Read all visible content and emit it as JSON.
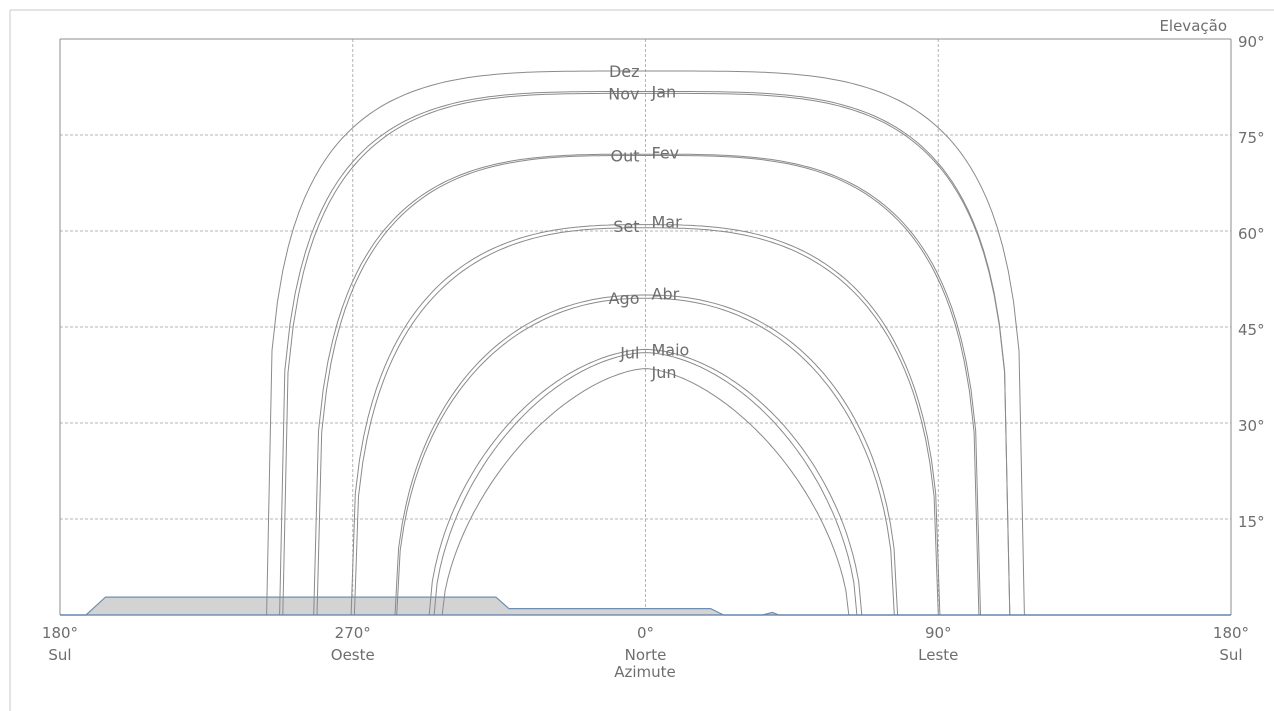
{
  "chart_data": {
    "type": "line",
    "x_axis": {
      "title": "Azimute",
      "range": [
        -180,
        180
      ],
      "ticks": [
        {
          "value": -180,
          "label": "180°",
          "sub": "Sul"
        },
        {
          "value": -90,
          "label": "270°",
          "sub": "Oeste"
        },
        {
          "value": 0,
          "label": "0°",
          "sub": "Norte"
        },
        {
          "value": 90,
          "label": "90°",
          "sub": "Leste"
        },
        {
          "value": 180,
          "label": "180°",
          "sub": "Sul"
        }
      ]
    },
    "y_axis": {
      "title": "Elevação",
      "range": [
        0,
        90
      ],
      "ticks": [
        {
          "value": 15,
          "label": "15°"
        },
        {
          "value": 30,
          "label": "30°"
        },
        {
          "value": 45,
          "label": "45°"
        },
        {
          "value": 60,
          "label": "60°"
        },
        {
          "value": 75,
          "label": "75°"
        },
        {
          "value": 90,
          "label": "90°"
        }
      ]
    },
    "grid": true,
    "series": [
      {
        "name": "Dez",
        "peak": 85.0,
        "left_base": -116.5,
        "right_base": 116.5
      },
      {
        "name": "Nov",
        "peak": 81.8,
        "left_base": -112.5,
        "right_base": 112.0
      },
      {
        "name": "Jan",
        "peak": 81.5,
        "left_base": -111.5,
        "right_base": 112.0
      },
      {
        "name": "Out",
        "peak": 72.0,
        "left_base": -102.0,
        "right_base": 103.0
      },
      {
        "name": "Fev",
        "peak": 71.8,
        "left_base": -101.0,
        "right_base": 102.5
      },
      {
        "name": "Set",
        "peak": 61.0,
        "left_base": -90.5,
        "right_base": 90.5
      },
      {
        "name": "Mar",
        "peak": 60.5,
        "left_base": -89.5,
        "right_base": 90.0
      },
      {
        "name": "Ago",
        "peak": 50.0,
        "left_base": -77.0,
        "right_base": 77.5
      },
      {
        "name": "Abr",
        "peak": 49.5,
        "left_base": -76.5,
        "right_base": 76.5
      },
      {
        "name": "Jul",
        "peak": 41.5,
        "left_base": -66.5,
        "right_base": 66.5
      },
      {
        "name": "Maio",
        "peak": 41.0,
        "left_base": -65.0,
        "right_base": 65.0
      },
      {
        "name": "Jun",
        "peak": 38.5,
        "left_base": -62.5,
        "right_base": 62.5
      }
    ],
    "month_labels": [
      {
        "text": "Dez",
        "side": "left",
        "elev": 85.0
      },
      {
        "text": "Nov",
        "side": "left",
        "elev": 81.5
      },
      {
        "text": "Jan",
        "side": "right",
        "elev": 81.8
      },
      {
        "text": "Out",
        "side": "left",
        "elev": 71.8
      },
      {
        "text": "Fev",
        "side": "right",
        "elev": 72.3
      },
      {
        "text": "Set",
        "side": "left",
        "elev": 60.8
      },
      {
        "text": "Mar",
        "side": "right",
        "elev": 61.5
      },
      {
        "text": "Ago",
        "side": "left",
        "elev": 49.5
      },
      {
        "text": "Abr",
        "side": "right",
        "elev": 50.2
      },
      {
        "text": "Jul",
        "side": "left",
        "elev": 41.0
      },
      {
        "text": "Maio",
        "side": "right",
        "elev": 41.5
      },
      {
        "text": "Jun",
        "side": "right",
        "elev": 38.0
      }
    ],
    "horizon_profile": [
      [
        -180,
        0
      ],
      [
        -172,
        0
      ],
      [
        -166,
        2.8
      ],
      [
        -91,
        2.8
      ],
      [
        -46,
        2.8
      ],
      [
        -42,
        1.0
      ],
      [
        0,
        1.0
      ],
      [
        20,
        1.0
      ],
      [
        24,
        0
      ],
      [
        36,
        0
      ],
      [
        39,
        0.4
      ],
      [
        41,
        0
      ],
      [
        180,
        0
      ]
    ],
    "colors": {
      "curve": "#8a8a8a",
      "grid": "#b4b4b4",
      "frame": "#8c8c8c",
      "horizon_fill": "#d3d3d3",
      "horizon_stroke": "#6e8fb4",
      "text": "#6e6e6e"
    }
  }
}
